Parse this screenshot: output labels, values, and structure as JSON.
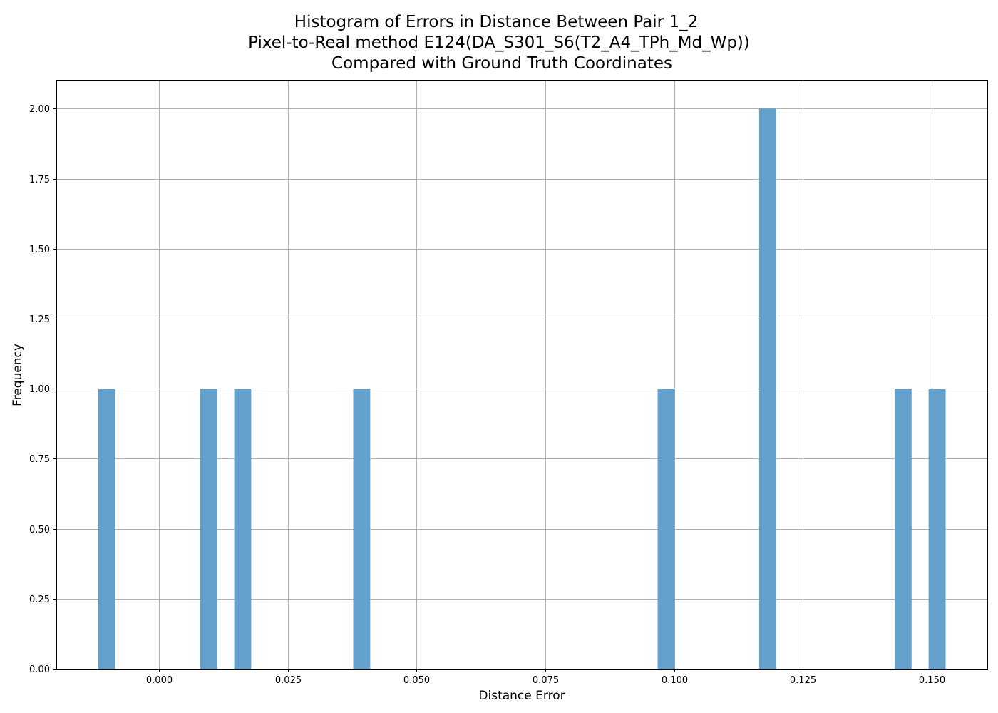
{
  "chart_data": {
    "type": "bar",
    "title_lines": [
      "Histogram of Errors in Distance Between Pair 1_2",
      "Pixel-to-Real method E124(DA_S301_S6(T2_A4_TPh_Md_Wp))",
      "Compared with Ground Truth Coordinates"
    ],
    "xlabel": "Distance Error",
    "ylabel": "Frequency",
    "xlim": [
      -0.0198,
      0.1608
    ],
    "ylim": [
      0,
      2.1
    ],
    "grid": true,
    "bar_color": "#63a0cb",
    "x_ticks": [
      {
        "value": 0.0,
        "label": "0.000"
      },
      {
        "value": 0.025,
        "label": "0.025"
      },
      {
        "value": 0.05,
        "label": "0.050"
      },
      {
        "value": 0.075,
        "label": "0.075"
      },
      {
        "value": 0.1,
        "label": "0.100"
      },
      {
        "value": 0.125,
        "label": "0.125"
      },
      {
        "value": 0.15,
        "label": "0.150"
      }
    ],
    "y_ticks": [
      {
        "value": 0.0,
        "label": "0.00"
      },
      {
        "value": 0.25,
        "label": "0.25"
      },
      {
        "value": 0.5,
        "label": "0.50"
      },
      {
        "value": 0.75,
        "label": "0.75"
      },
      {
        "value": 1.0,
        "label": "1.00"
      },
      {
        "value": 1.25,
        "label": "1.25"
      },
      {
        "value": 1.5,
        "label": "1.50"
      },
      {
        "value": 1.75,
        "label": "1.75"
      },
      {
        "value": 2.0,
        "label": "2.00"
      }
    ],
    "bins": [
      {
        "x0": -0.0118,
        "x1": -0.0085,
        "count": 1
      },
      {
        "x0": 0.008,
        "x1": 0.0113,
        "count": 1
      },
      {
        "x0": 0.0146,
        "x1": 0.0179,
        "count": 1
      },
      {
        "x0": 0.0377,
        "x1": 0.041,
        "count": 1
      },
      {
        "x0": 0.0968,
        "x1": 0.1001,
        "count": 1
      },
      {
        "x0": 0.1165,
        "x1": 0.1198,
        "count": 2
      },
      {
        "x0": 0.1428,
        "x1": 0.1461,
        "count": 1
      },
      {
        "x0": 0.1494,
        "x1": 0.1527,
        "count": 1
      }
    ]
  }
}
